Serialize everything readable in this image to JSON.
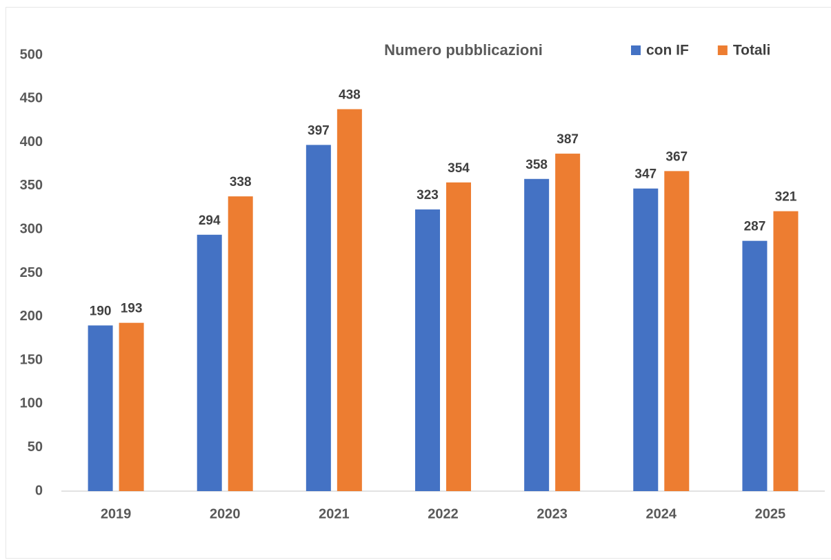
{
  "chart_data": {
    "type": "bar",
    "title": "Numero pubblicazioni",
    "categories": [
      "2019",
      "2020",
      "2021",
      "2022",
      "2023",
      "2024",
      "2025"
    ],
    "series": [
      {
        "name": "con IF",
        "color": "#4472c4",
        "values": [
          190,
          294,
          397,
          323,
          358,
          347,
          287
        ]
      },
      {
        "name": "Totali",
        "color": "#ed7d31",
        "values": [
          193,
          338,
          438,
          354,
          387,
          367,
          321
        ]
      }
    ],
    "ylim": [
      0,
      500
    ],
    "yticks": [
      0,
      50,
      100,
      150,
      200,
      250,
      300,
      350,
      400,
      450,
      500
    ],
    "grid": false,
    "legend": "top-right"
  }
}
